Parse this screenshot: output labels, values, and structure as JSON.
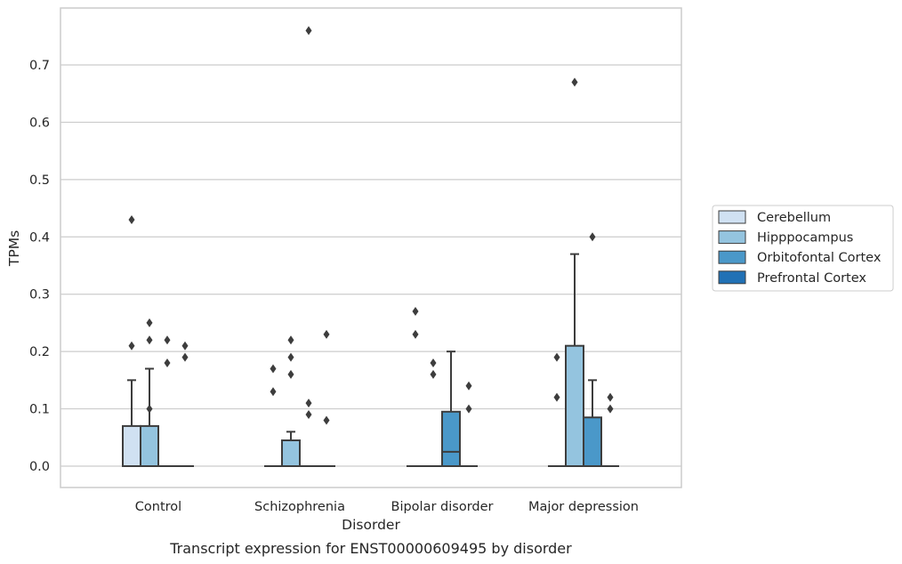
{
  "chart_data": {
    "type": "box",
    "xlabel": "Disorder",
    "ylabel": "TPMs",
    "caption": "Transcript expression for ENST00000609495 by disorder",
    "ylim": [
      -0.037,
      0.795
    ],
    "yticks": [
      "0.0",
      "0.1",
      "0.2",
      "0.3",
      "0.4",
      "0.5",
      "0.6",
      "0.7"
    ],
    "grid": "horizontal",
    "legend_position": "right",
    "categories": [
      "Control",
      "Schizophrenia",
      "Bipolar disorder",
      "Major depression"
    ],
    "series": [
      {
        "name": "Cerebellum",
        "color": "#d0e1f2",
        "boxes": [
          {
            "q1": 0.0,
            "median": 0.0,
            "q3": 0.07,
            "whisker_low": 0.0,
            "whisker_high": 0.15,
            "outliers": [
              0.43,
              0.21
            ]
          },
          {
            "q1": 0.0,
            "median": 0.0,
            "q3": 0.0,
            "whisker_low": 0.0,
            "whisker_high": 0.0,
            "outliers": [
              0.17,
              0.13
            ]
          },
          {
            "q1": 0.0,
            "median": 0.0,
            "q3": 0.0,
            "whisker_low": 0.0,
            "whisker_high": 0.0,
            "outliers": [
              0.27,
              0.23
            ]
          },
          {
            "q1": 0.0,
            "median": 0.0,
            "q3": 0.0,
            "whisker_low": 0.0,
            "whisker_high": 0.0,
            "outliers": [
              0.19,
              0.12
            ]
          }
        ]
      },
      {
        "name": "Hipppocampus",
        "color": "#94c4df",
        "boxes": [
          {
            "q1": 0.0,
            "median": 0.0,
            "q3": 0.07,
            "whisker_low": 0.0,
            "whisker_high": 0.17,
            "outliers": [
              0.25,
              0.22,
              0.1
            ]
          },
          {
            "q1": 0.0,
            "median": 0.0,
            "q3": 0.045,
            "whisker_low": 0.0,
            "whisker_high": 0.06,
            "outliers": [
              0.22,
              0.19,
              0.16
            ]
          },
          {
            "q1": 0.0,
            "median": 0.0,
            "q3": 0.0,
            "whisker_low": 0.0,
            "whisker_high": 0.0,
            "outliers": [
              0.18,
              0.16
            ]
          },
          {
            "q1": 0.0,
            "median": 0.0,
            "q3": 0.21,
            "whisker_low": 0.0,
            "whisker_high": 0.37,
            "outliers": [
              0.67
            ]
          }
        ]
      },
      {
        "name": "Orbitofontal Cortex",
        "color": "#4a98c9",
        "boxes": [
          {
            "q1": 0.0,
            "median": 0.0,
            "q3": 0.0,
            "whisker_low": 0.0,
            "whisker_high": 0.0,
            "outliers": [
              0.22,
              0.18
            ]
          },
          {
            "q1": 0.0,
            "median": 0.0,
            "q3": 0.0,
            "whisker_low": 0.0,
            "whisker_high": 0.0,
            "outliers": [
              0.76,
              0.11,
              0.09
            ]
          },
          {
            "q1": 0.0,
            "median": 0.025,
            "q3": 0.095,
            "whisker_low": 0.0,
            "whisker_high": 0.2,
            "outliers": []
          },
          {
            "q1": 0.0,
            "median": 0.0,
            "q3": 0.085,
            "whisker_low": 0.0,
            "whisker_high": 0.15,
            "outliers": [
              0.4
            ]
          }
        ]
      },
      {
        "name": "Prefrontal Cortex",
        "color": "#2171b5",
        "boxes": [
          {
            "q1": 0.0,
            "median": 0.0,
            "q3": 0.0,
            "whisker_low": 0.0,
            "whisker_high": 0.0,
            "outliers": [
              0.21,
              0.19
            ]
          },
          {
            "q1": 0.0,
            "median": 0.0,
            "q3": 0.0,
            "whisker_low": 0.0,
            "whisker_high": 0.0,
            "outliers": [
              0.23,
              0.08
            ]
          },
          {
            "q1": 0.0,
            "median": 0.0,
            "q3": 0.0,
            "whisker_low": 0.0,
            "whisker_high": 0.0,
            "outliers": [
              0.14,
              0.1
            ]
          },
          {
            "q1": 0.0,
            "median": 0.0,
            "q3": 0.0,
            "whisker_low": 0.0,
            "whisker_high": 0.0,
            "outliers": [
              0.12,
              0.1
            ]
          }
        ]
      }
    ]
  },
  "colors": {
    "grid": "#cccccc",
    "frame": "#cccccc",
    "box_edge": "#3d3d3d",
    "outlier": "#3d3d3d"
  }
}
